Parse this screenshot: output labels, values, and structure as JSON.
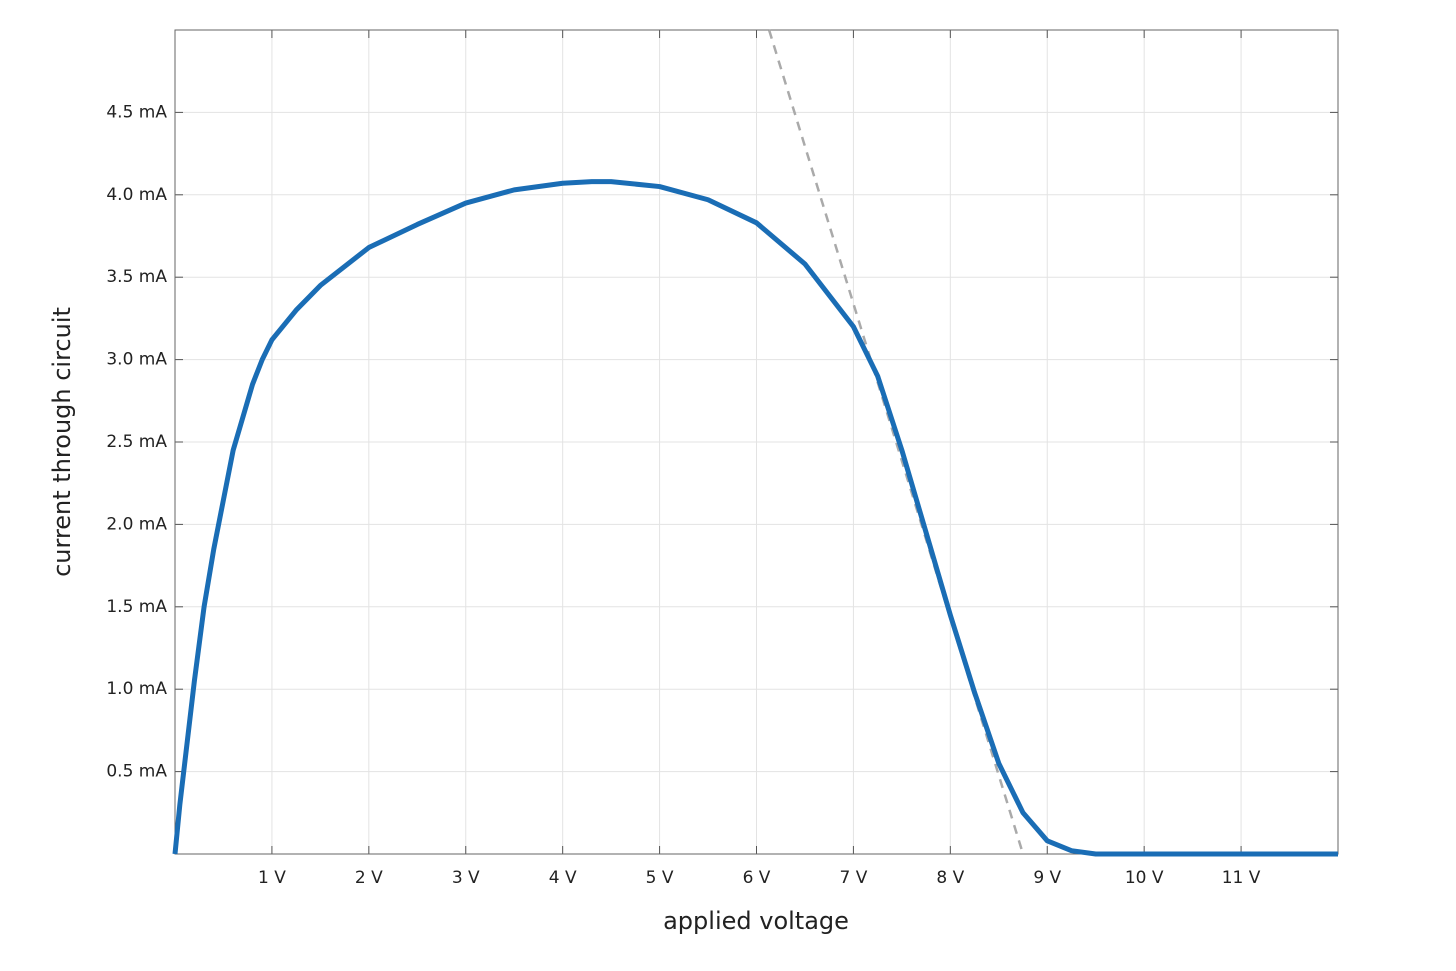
{
  "chart_data": {
    "type": "line",
    "xlabel": "applied voltage",
    "ylabel": "current through circuit",
    "xlim": [
      0,
      12
    ],
    "ylim": [
      0,
      5
    ],
    "xticks": [
      {
        "value": 1,
        "label": "1 V"
      },
      {
        "value": 2,
        "label": "2 V"
      },
      {
        "value": 3,
        "label": "3 V"
      },
      {
        "value": 4,
        "label": "4 V"
      },
      {
        "value": 5,
        "label": "5 V"
      },
      {
        "value": 6,
        "label": "6 V"
      },
      {
        "value": 7,
        "label": "7 V"
      },
      {
        "value": 8,
        "label": "8 V"
      },
      {
        "value": 9,
        "label": "9 V"
      },
      {
        "value": 10,
        "label": "10 V"
      },
      {
        "value": 11,
        "label": "11 V"
      }
    ],
    "yticks": [
      {
        "value": 0.5,
        "label": "0.5 mA"
      },
      {
        "value": 1.0,
        "label": "1.0 mA"
      },
      {
        "value": 1.5,
        "label": "1.5 mA"
      },
      {
        "value": 2.0,
        "label": "2.0 mA"
      },
      {
        "value": 2.5,
        "label": "2.5 mA"
      },
      {
        "value": 3.0,
        "label": "3.0 mA"
      },
      {
        "value": 3.5,
        "label": "3.5 mA"
      },
      {
        "value": 4.0,
        "label": "4.0 mA"
      },
      {
        "value": 4.5,
        "label": "4.5 mA"
      }
    ],
    "grid": true,
    "series": [
      {
        "color": "#aaaaaa",
        "dashed": true,
        "x": [
          6.13,
          8.75
        ],
        "values": [
          5.0,
          0
        ]
      },
      {
        "color": "#1a6db5",
        "x": [
          0,
          0.05,
          0.1,
          0.2,
          0.3,
          0.4,
          0.5,
          0.6,
          0.7,
          0.8,
          0.9,
          1.0,
          1.25,
          1.5,
          2.0,
          2.5,
          3.0,
          3.5,
          4.0,
          4.3,
          4.5,
          5.0,
          5.5,
          6.0,
          6.5,
          7.0,
          7.25,
          7.5,
          7.75,
          8.0,
          8.25,
          8.5,
          8.75,
          9.0,
          9.25,
          9.5,
          12
        ],
        "values": [
          0,
          0.3,
          0.55,
          1.05,
          1.5,
          1.85,
          2.15,
          2.45,
          2.65,
          2.85,
          3.0,
          3.12,
          3.3,
          3.45,
          3.68,
          3.82,
          3.95,
          4.03,
          4.07,
          4.08,
          4.08,
          4.05,
          3.97,
          3.83,
          3.58,
          3.2,
          2.9,
          2.45,
          1.95,
          1.45,
          0.98,
          0.55,
          0.25,
          0.08,
          0.02,
          0,
          0
        ]
      }
    ]
  }
}
